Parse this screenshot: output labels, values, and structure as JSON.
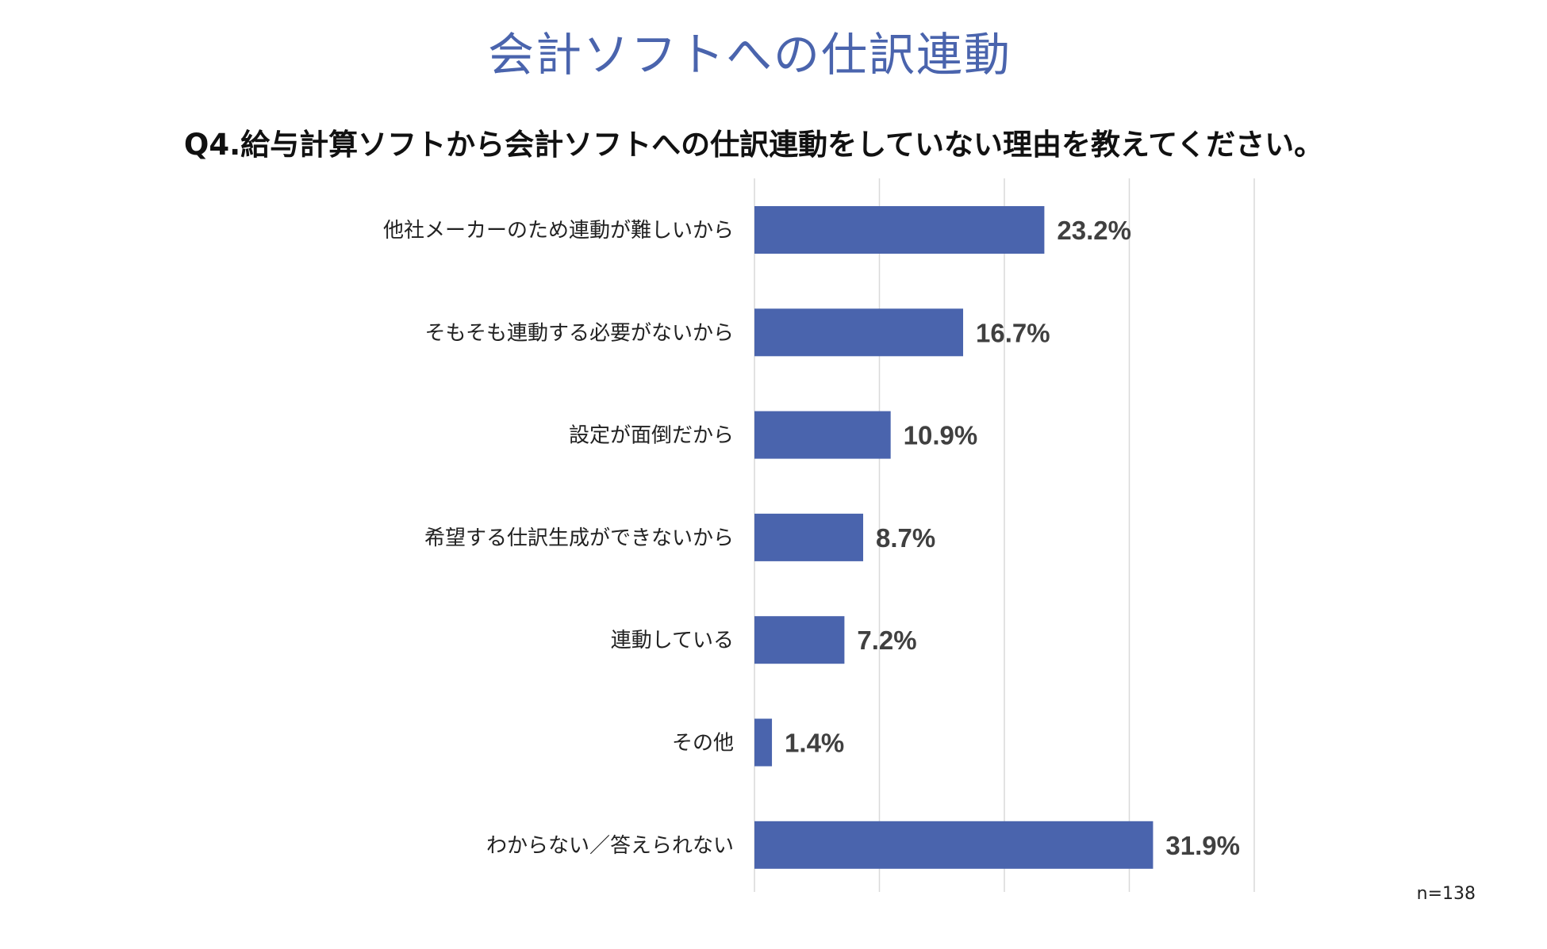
{
  "header": {
    "title": "会計ソフトへの仕訳連動"
  },
  "chart_data": {
    "type": "bar",
    "orientation": "horizontal",
    "title": "Q4.給与計算ソフトから会計ソフトへの仕訳連動をしていない理由を教えてください。",
    "categories": [
      "他社メーカーのため連動が難しいから",
      "そもそも連動する必要がないから",
      "設定が面倒だから",
      "希望する仕訳生成ができないから",
      "連動している",
      "その他",
      "わからない／答えられない"
    ],
    "values": [
      23.2,
      16.7,
      10.9,
      8.7,
      7.2,
      1.4,
      31.9
    ],
    "value_labels": [
      "23.2%",
      "16.7%",
      "10.9%",
      "8.7%",
      "7.2%",
      "1.4%",
      "31.9%"
    ],
    "xlim": [
      0,
      40
    ],
    "gridlines": [
      0,
      10,
      20,
      30,
      40
    ],
    "grid": true,
    "bar_color": "#4a64ad",
    "note": "n=138"
  }
}
